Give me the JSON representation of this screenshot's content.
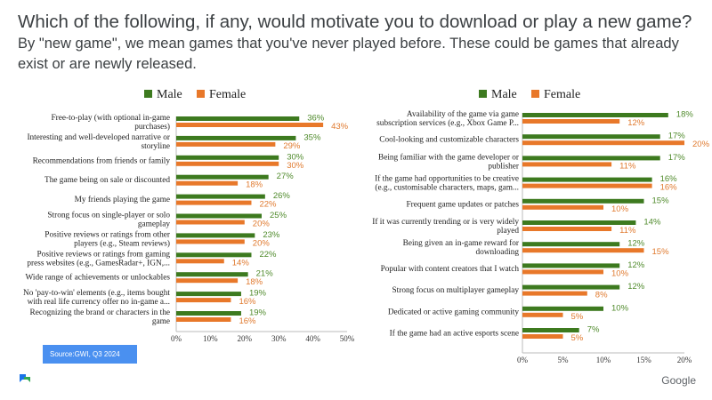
{
  "header": {
    "question": "Which of the following, if any, would motivate you to download or play a new game?",
    "definition": " By \"new game\", we mean games that you've never played before. These could be games that already exist or are newly released."
  },
  "source": "Source:GWI, Q3 2024",
  "brand": "Google",
  "colors": {
    "male": "#3d7a1f",
    "female": "#e8782a",
    "male_text": "#4f8a2b",
    "female_text": "#e07a2f",
    "axis": "#bbbbbb"
  },
  "chart_data": [
    {
      "type": "bar",
      "orientation": "horizontal",
      "legend": [
        "Male",
        "Female"
      ],
      "xlim": [
        0,
        50
      ],
      "ticks": [
        0,
        10,
        20,
        30,
        40,
        50
      ],
      "tick_labels": [
        "0%",
        "10%",
        "20%",
        "30%",
        "40%",
        "50%"
      ],
      "categories": [
        [
          "Free-to-play (with optional in-game",
          "purchases)"
        ],
        [
          "Interesting and well-developed narrative or",
          "storyline"
        ],
        [
          "Recommendations from friends or family"
        ],
        [
          "The game being on sale or discounted"
        ],
        [
          "My friends playing the game"
        ],
        [
          "Strong focus on single-player or solo",
          "gameplay"
        ],
        [
          "Positive reviews or ratings from other",
          "players (e.g., Steam reviews)"
        ],
        [
          "Positive reviews or ratings from gaming",
          "press websites (e.g., GamesRadar+, IGN,..."
        ],
        [
          "Wide range of achievements or unlockables"
        ],
        [
          "No 'pay-to-win' elements (e.g., items bought",
          "with real life currency offer no in-game a..."
        ],
        [
          "Recognizing the brand or characters in the",
          "game"
        ]
      ],
      "series": [
        {
          "name": "Male",
          "values": [
            36,
            35,
            30,
            27,
            26,
            25,
            23,
            22,
            21,
            19,
            19
          ]
        },
        {
          "name": "Female",
          "values": [
            43,
            29,
            30,
            18,
            22,
            20,
            20,
            14,
            18,
            16,
            16
          ]
        }
      ]
    },
    {
      "type": "bar",
      "orientation": "horizontal",
      "legend": [
        "Male",
        "Female"
      ],
      "xlim": [
        0,
        20
      ],
      "ticks": [
        0,
        5,
        10,
        15,
        20
      ],
      "tick_labels": [
        "0%",
        "5%",
        "10%",
        "15%",
        "20%"
      ],
      "categories": [
        [
          "Availability of the game via game",
          "subscription services (e.g., Xbox Game P..."
        ],
        [
          "Cool-looking and customizable characters"
        ],
        [
          "Being familiar with the game developer or",
          "publisher"
        ],
        [
          "If the game had opportunities to be creative",
          "(e.g., customisable characters, maps, gam..."
        ],
        [
          "Frequent game updates or patches"
        ],
        [
          "If it was currently trending or is very widely",
          "played"
        ],
        [
          "Being given an in-game reward for",
          "downloading"
        ],
        [
          "Popular with content creators that I watch"
        ],
        [
          "Strong focus on multiplayer gameplay"
        ],
        [
          "Dedicated or active gaming community"
        ],
        [
          "If the game had an active esports scene"
        ]
      ],
      "series": [
        {
          "name": "Male",
          "values": [
            18,
            17,
            17,
            16,
            15,
            14,
            12,
            12,
            12,
            10,
            7
          ]
        },
        {
          "name": "Female",
          "values": [
            12,
            20,
            11,
            16,
            10,
            11,
            15,
            10,
            8,
            5,
            5
          ]
        }
      ]
    }
  ]
}
